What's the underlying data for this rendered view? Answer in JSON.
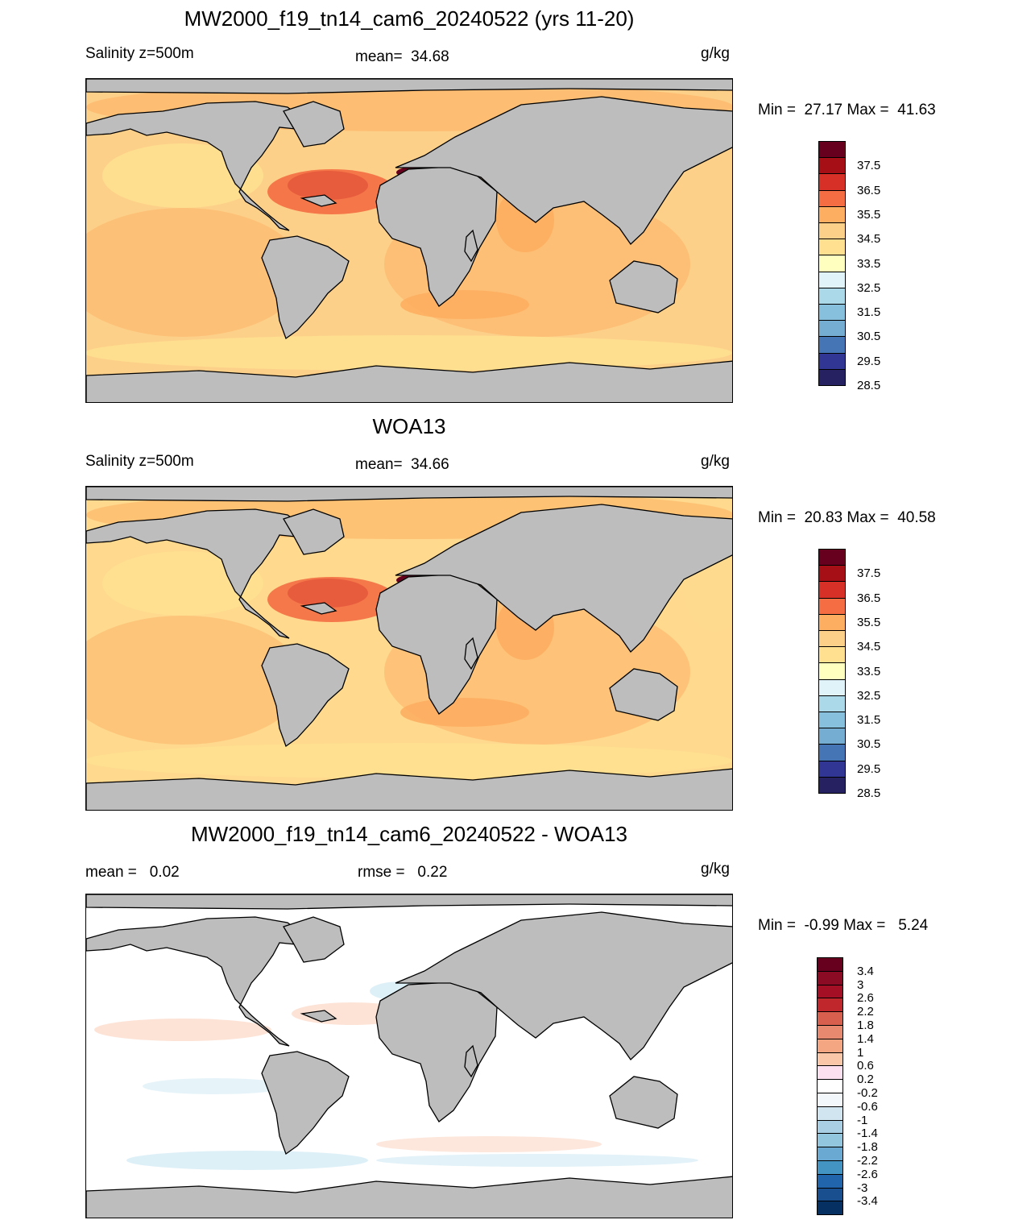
{
  "palette": {
    "land": "#bdbdbd",
    "coast": "#000000",
    "ocean_model": "#fdd089",
    "ocean_obs": "#fed98e",
    "ocean_diff": "#ffffff"
  },
  "panels": [
    {
      "title": "MW2000_f19_tn14_cam6_20240522 (yrs 11-20)",
      "left_label": "Salinity z=500m",
      "mid_label": "mean=  34.68",
      "units": "g/kg",
      "minmax": "Min =  27.17 Max =  41.63",
      "colorbar": {
        "labels": [
          "37.5",
          "36.5",
          "35.5",
          "34.5",
          "33.5",
          "32.5",
          "31.5",
          "30.5",
          "29.5",
          "28.5"
        ],
        "colors": [
          "#67001f",
          "#a50f15",
          "#d73027",
          "#f46d43",
          "#fdae61",
          "#fdd089",
          "#fee090",
          "#ffffbf",
          "#e0f3f8",
          "#abd9e9",
          "#86c0dd",
          "#74add1",
          "#4575b4",
          "#313695",
          "#262262"
        ]
      },
      "features": "model"
    },
    {
      "title": "WOA13",
      "left_label": "Salinity z=500m",
      "mid_label": "mean=  34.66",
      "units": "g/kg",
      "minmax": "Min =  20.83 Max =  40.58",
      "colorbar": {
        "labels": [
          "37.5",
          "36.5",
          "35.5",
          "34.5",
          "33.5",
          "32.5",
          "31.5",
          "30.5",
          "29.5",
          "28.5"
        ],
        "colors": [
          "#67001f",
          "#a50f15",
          "#d73027",
          "#f46d43",
          "#fdae61",
          "#fdd089",
          "#fee090",
          "#ffffbf",
          "#e0f3f8",
          "#abd9e9",
          "#86c0dd",
          "#74add1",
          "#4575b4",
          "#313695",
          "#262262"
        ]
      },
      "features": "obs"
    },
    {
      "title": "MW2000_f19_tn14_cam6_20240522 - WOA13",
      "left_label": "mean =   0.02",
      "mid_label": "rmse =   0.22",
      "units": "g/kg",
      "minmax": "Min =  -0.99 Max =   5.24",
      "colorbar": {
        "labels": [
          "3.4",
          "3",
          "2.6",
          "2.2",
          "1.8",
          "1.4",
          "1",
          "0.6",
          "0.2",
          "-0.2",
          "-0.6",
          "-1",
          "-1.4",
          "-1.8",
          "-2.2",
          "-2.6",
          "-3",
          "-3.4"
        ],
        "colors": [
          "#67001f",
          "#8b0a24",
          "#a50f26",
          "#c0272d",
          "#d6604d",
          "#e7896e",
          "#f4a582",
          "#fbc7a9",
          "#fde0ef",
          "#ffffff",
          "#f2f7fb",
          "#d1e5f0",
          "#a8cfe3",
          "#92c5de",
          "#6aa9d1",
          "#4393c3",
          "#2166ac",
          "#1a4f8f",
          "#053061"
        ]
      },
      "features": "diff"
    }
  ]
}
